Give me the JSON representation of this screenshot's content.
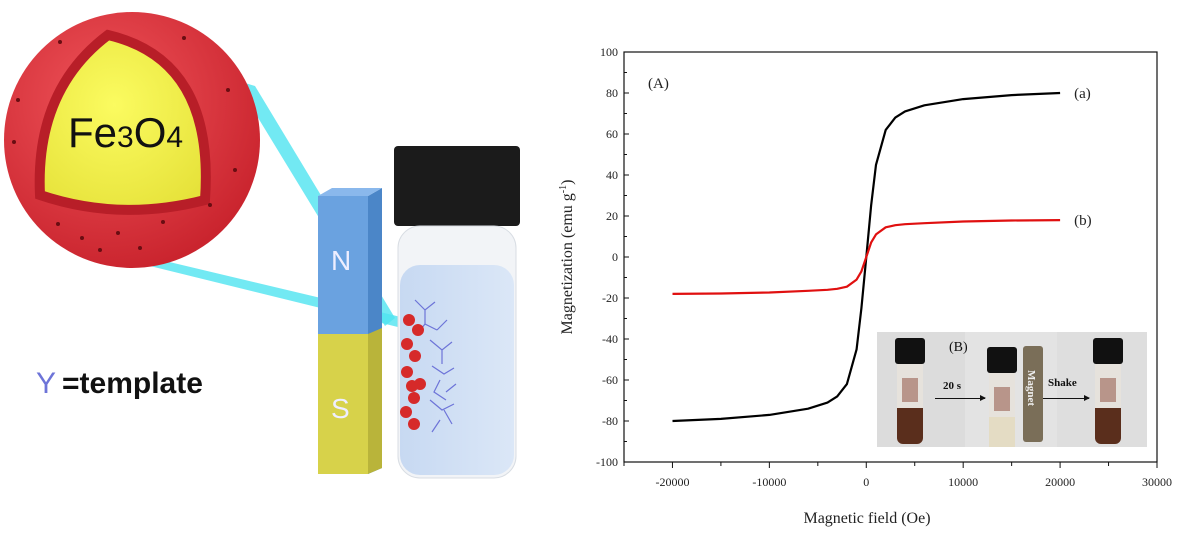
{
  "illustration": {
    "core_label": "Fe",
    "core_sub1": "3",
    "core_label2": "O",
    "core_sub2": "4",
    "magnet_north": "N",
    "magnet_south": "S",
    "legend_symbol": "Y",
    "legend_text": "=template",
    "colors": {
      "shell": "#d8303a",
      "core": "#f2f04a",
      "magnet_n": "#6aa2e0",
      "magnet_s": "#d7d24a",
      "beam": "#4fe3f0",
      "template": "#6d74d8"
    }
  },
  "chart_data": {
    "type": "line",
    "panel_label": "(A)",
    "xlabel": "Magnetic field (Oe)",
    "ylabel": "Magnetization (emu g",
    "ylabel_sup": "-1",
    "ylabel_close": ")",
    "xlim": [
      -25000,
      30000
    ],
    "ylim": [
      -100,
      100
    ],
    "xticks": [
      -20000,
      -10000,
      0,
      10000,
      20000,
      30000
    ],
    "yticks": [
      -100,
      -80,
      -60,
      -40,
      -20,
      0,
      20,
      40,
      60,
      80,
      100
    ],
    "grid": false,
    "x": [
      -20000,
      -15000,
      -10000,
      -6000,
      -4000,
      -3000,
      -2000,
      -1000,
      -500,
      0,
      500,
      1000,
      2000,
      3000,
      4000,
      6000,
      10000,
      15000,
      20000
    ],
    "series": [
      {
        "name": "(a)",
        "color": "#000000",
        "values": [
          -80,
          -79,
          -77,
          -74,
          -71,
          -68,
          -62,
          -45,
          -25,
          0,
          25,
          45,
          62,
          68,
          71,
          74,
          77,
          79,
          80
        ]
      },
      {
        "name": "(b)",
        "color": "#e01010",
        "values": [
          -18,
          -17.8,
          -17.3,
          -16.5,
          -16,
          -15.5,
          -14.5,
          -11,
          -7,
          0,
          7,
          11,
          14.5,
          15.5,
          16,
          16.5,
          17.3,
          17.8,
          18
        ]
      }
    ],
    "inset": {
      "panel_label": "(B)",
      "step1": "20 s",
      "magnet_label": "Magnet",
      "step2": "Shake"
    }
  }
}
